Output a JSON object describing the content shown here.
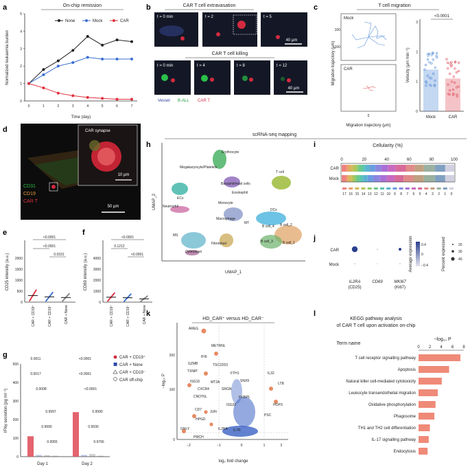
{
  "panels": {
    "a": {
      "letter": "a",
      "title": "On-chip remission",
      "ylabel": "Normalized leukaemia burden",
      "xlabel": "Time (day)"
    },
    "b": {
      "letter": "b",
      "title1": "CAR T cell extravasation",
      "title2": "CAR T cell killing",
      "times1": [
        "t = 0 min",
        "t = 2",
        "t = 5"
      ],
      "times2": [
        "t = 0 min",
        "t = 4",
        "t = 8",
        "t = 12"
      ],
      "scale1": "40 μm",
      "scale2": "40 μm",
      "legend": [
        "Vessel",
        "B-ALL",
        "CAR T"
      ]
    },
    "c": {
      "letter": "c",
      "title": "T cell migration",
      "mock": "Mock",
      "car": "CAR",
      "ylabel": "Migration trajectory (μm)",
      "xlabel": "Migration trajectory (μm)",
      "vlabel": "Velocity (μm min⁻¹)",
      "p": "<0.0001",
      "cats": [
        "Mock",
        "CAR"
      ]
    },
    "d": {
      "letter": "d",
      "synapse": "CAR synapse",
      "scale_in": "10 μm",
      "scale_out": "50 μm",
      "labels": [
        "CD31",
        "CD19",
        "CAR T"
      ]
    },
    "e": {
      "letter": "e",
      "ylabel": "CD25 intensity (a.u.)",
      "p": [
        "<0.0001",
        "<0.0001",
        "0.0331"
      ],
      "cats": [
        "CAR + CD19⁺",
        "CAR + CD19⁻",
        "CAR + None"
      ]
    },
    "f": {
      "letter": "f",
      "ylabel": "CD69 intensity (a.u.)",
      "p": [
        "<0.0001",
        "0.1212",
        "<0.0001"
      ],
      "cats": [
        "CAR + CD19⁺",
        "CAR + CD19⁻",
        "CAR + None"
      ]
    },
    "g": {
      "letter": "g",
      "ylabel": "IFNγ secretion (pg ml⁻¹)",
      "days": [
        "Day 1",
        "Day 2"
      ],
      "p_day1": [
        "0.0011",
        "0.0017",
        "0.0008",
        "0.9997",
        "0.9990",
        "0.9955"
      ],
      "p_day2": [
        "<0.0001",
        "<0.0001",
        "<0.0001",
        "0.9990",
        "0.9930",
        "0.9766"
      ],
      "legend": [
        "CAR + CD19⁺",
        "CAR + None",
        "CAR + CD19⁻",
        "CAR off-chip"
      ]
    },
    "h": {
      "letter": "h",
      "header": "scRNA-seq mapping",
      "xlabel": "UMAP_1",
      "ylabel": "UMAP_2",
      "clusters": [
        "Erythrocyte",
        "Megakaryocyte/Platelets",
        "T cell",
        "ECs",
        "Basophil/mast cells",
        "Eosinophil",
        "Neutrophil",
        "Monocyte",
        "DCs",
        "Macrophage",
        "MT",
        "B cell_2",
        "B cell_4",
        "B cell_3",
        "B cell_1",
        "MS",
        "Fibroblast",
        "Osteoblast"
      ]
    },
    "i": {
      "letter": "i",
      "title": "Cellularity (%)",
      "rows": [
        "CAR",
        "Mock"
      ],
      "clusters": [
        "17",
        "16",
        "15",
        "14",
        "13",
        "12",
        "11",
        "10",
        "9",
        "8",
        "7",
        "6",
        "5",
        "4",
        "3",
        "2",
        "1",
        "0"
      ]
    },
    "j": {
      "letter": "j",
      "rows": [
        "CAR",
        "Mock"
      ],
      "genes": [
        "IL2RA",
        "CD69",
        "MKI67"
      ],
      "sub": [
        "(CD25)",
        "",
        "(Ki67)"
      ],
      "avg_label": "Average expression",
      "pct_label": "Percent expressed",
      "avg_ticks": [
        "0.4",
        "0",
        "−0.4"
      ],
      "pct_ticks": [
        "20",
        "30",
        "40"
      ]
    },
    "k": {
      "letter": "k",
      "title": "HD_CAR⁺ versus HD_CAR⁻",
      "xlabel": "log₂ fold change",
      "ylabel": "−log₁₀ P",
      "genes": [
        "AREG",
        "METRNL",
        "IFI6",
        "TSC22D3",
        "GZMB",
        "TXNIP",
        "FTH1",
        "IL32",
        "LTB",
        "SNX9",
        "ISG15",
        "MT2A",
        "CXCR4",
        "SRGN",
        "CNOT6L",
        "FKBP5",
        "ISG20",
        "HOPX",
        "CD7",
        "JUN",
        "HPGD",
        "PSC",
        "GNLY",
        "PMCH",
        "IL2RA",
        "IL7R",
        "TFF3",
        "LY6E",
        "NR4A2"
      ]
    },
    "l": {
      "letter": "l",
      "title1": "KEGG pathway analysis",
      "title2": "of CAR T cell upon activation on-chip",
      "term": "Term name",
      "xlabel": "−log₁₀ P",
      "ticks": [
        "0",
        "2",
        "4",
        "6",
        "8"
      ]
    }
  },
  "chart_data": [
    {
      "type": "line",
      "title": "On-chip remission",
      "xlabel": "Time (day)",
      "ylabel": "Normalized leukaemia burden",
      "x": [
        0,
        1,
        2,
        3,
        4,
        5,
        6,
        7
      ],
      "ylim": [
        0,
        5
      ],
      "series": [
        {
          "name": "None",
          "color": "#222222",
          "values": [
            1.0,
            1.8,
            2.3,
            2.9,
            3.7,
            3.2,
            3.5,
            3.4
          ]
        },
        {
          "name": "Mock",
          "color": "#3a6fd0",
          "values": [
            1.0,
            1.5,
            2.0,
            2.2,
            2.5,
            2.4,
            2.4,
            2.4
          ]
        },
        {
          "name": "CAR",
          "color": "#e0313f",
          "values": [
            1.0,
            0.75,
            0.45,
            0.3,
            0.2,
            0.15,
            0.1,
            0.1
          ]
        }
      ]
    },
    {
      "type": "bar",
      "title": "",
      "ylabel": "Velocity (μm min⁻¹)",
      "categories": [
        "Mock",
        "CAR"
      ],
      "values": [
        1.4,
        1.1
      ],
      "ylim": [
        0,
        3
      ]
    },
    {
      "type": "bar",
      "title": "",
      "ylabel": "CD25 intensity (a.u.)",
      "categories": [
        "CAR + CD19⁺",
        "CAR + CD19⁻",
        "CAR + None"
      ],
      "values": [
        300,
        240,
        210
      ],
      "ylim": [
        0,
        2000
      ]
    },
    {
      "type": "bar",
      "title": "",
      "ylabel": "CD69 intensity (a.u.)",
      "categories": [
        "CAR + CD19⁺",
        "CAR + CD19⁻",
        "CAR + None"
      ],
      "values": [
        450,
        400,
        300
      ],
      "ylim": [
        0,
        4000
      ]
    },
    {
      "type": "bar",
      "title": "",
      "ylabel": "IFNγ secretion (pg ml⁻¹)",
      "categories": [
        "Day 1",
        "Day 2"
      ],
      "series": [
        {
          "name": "CAR + CD19⁺",
          "values": [
            110,
            240
          ]
        },
        {
          "name": "CAR + None",
          "values": [
            10,
            10
          ]
        },
        {
          "name": "CAR + CD19⁻",
          "values": [
            8,
            15
          ]
        },
        {
          "name": "CAR off-chip",
          "values": [
            5,
            5
          ]
        }
      ],
      "ylim": [
        0,
        500
      ]
    },
    {
      "type": "bar",
      "title": "KEGG pathway analysis",
      "xlabel": "−log₁₀ P",
      "categories": [
        "T cell receptor signalling pathway",
        "Apoptosis",
        "Natural killer cell-mediated cytotoxicity",
        "Leukocyte transendothelial migration",
        "Oxidative phosphorylation",
        "Phagosome",
        "TH1 and TH2 cell differentiation",
        "IL-17 signalling pathway",
        "Endocytosis"
      ],
      "values": [
        7.4,
        5.4,
        4.1,
        3.4,
        3.0,
        2.8,
        2.0,
        1.8,
        1.6
      ],
      "xlim": [
        0,
        8
      ]
    }
  ]
}
